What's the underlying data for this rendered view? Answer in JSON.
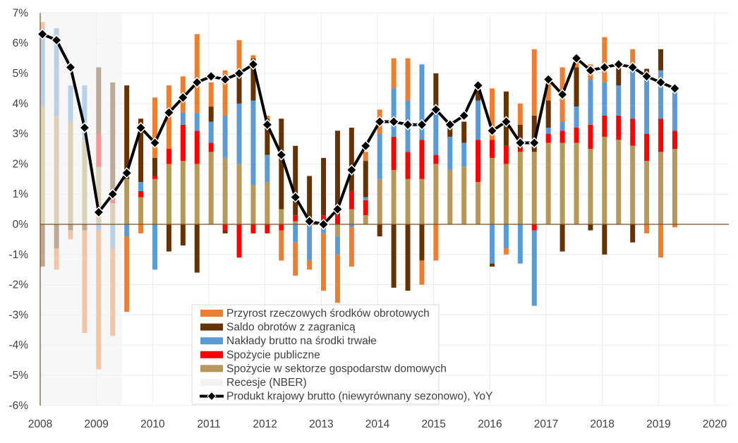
{
  "chart_data": {
    "type": "bar",
    "stacked": true,
    "title": "",
    "xlabel": "",
    "ylabel": "",
    "categories": [
      "2008Q1",
      "2008Q2",
      "2008Q3",
      "2008Q4",
      "2009Q1",
      "2009Q2",
      "2009Q3",
      "2009Q4",
      "2010Q1",
      "2010Q2",
      "2010Q3",
      "2010Q4",
      "2011Q1",
      "2011Q2",
      "2011Q3",
      "2011Q4",
      "2012Q1",
      "2012Q2",
      "2012Q3",
      "2012Q4",
      "2013Q1",
      "2013Q2",
      "2013Q3",
      "2013Q4",
      "2014Q1",
      "2014Q2",
      "2014Q3",
      "2014Q4",
      "2015Q1",
      "2015Q2",
      "2015Q3",
      "2015Q4",
      "2016Q1",
      "2016Q2",
      "2016Q3",
      "2016Q4",
      "2017Q1",
      "2017Q2",
      "2017Q3",
      "2017Q4",
      "2018Q1",
      "2018Q2",
      "2018Q3",
      "2018Q4",
      "2019Q1",
      "2019Q2"
    ],
    "x_ticks": [
      "2008",
      "2009",
      "2010",
      "2011",
      "2012",
      "2013",
      "2014",
      "2015",
      "2016",
      "2017",
      "2018",
      "2019",
      "2020"
    ],
    "y_ticks": [
      "-6%",
      "-5%",
      "-4%",
      "-3%",
      "-2%",
      "-1%",
      "0%",
      "1%",
      "2%",
      "3%",
      "4%",
      "5%",
      "6%",
      "7%"
    ],
    "xlim": [
      2008,
      2020
    ],
    "ylim": [
      -6,
      7
    ],
    "grid": true,
    "legend_position": "bottom-center",
    "series": [
      {
        "name": "Spożycie w sektorze gospodarstw domowych",
        "color": "#B5985A",
        "values": [
          3.9,
          3.6,
          3.4,
          2.8,
          1.9,
          0.7,
          1.5,
          0.9,
          1.5,
          2.0,
          2.1,
          2.0,
          2.4,
          2.2,
          2.0,
          1.3,
          1.4,
          0.5,
          0.1,
          0.1,
          0,
          -0.4,
          0.5,
          0.3,
          1.5,
          1.8,
          1.5,
          1.5,
          2.0,
          1.8,
          1.9,
          1.4,
          2.2,
          2.0,
          2.4,
          2.4,
          2.7,
          2.7,
          2.7,
          2.5,
          2.9,
          2.8,
          2.6,
          2.1,
          2.4,
          2.5
        ]
      },
      {
        "name": "Spożycie publiczne",
        "color": "#FF0000",
        "values": [
          0,
          0,
          0,
          0,
          1.1,
          0.1,
          0,
          0.2,
          0.1,
          0.5,
          1.2,
          1.1,
          0.3,
          -0.2,
          -1.1,
          -0.3,
          -0.3,
          -0.2,
          0.2,
          0,
          0.3,
          0.3,
          0.6,
          0.5,
          0,
          1.1,
          0.9,
          1.3,
          0.3,
          0,
          0,
          1.4,
          0.6,
          0.6,
          0.1,
          -0.2,
          0.3,
          0.4,
          0.5,
          0.8,
          0.7,
          0.8,
          0.9,
          0.9,
          1.1,
          0.6
        ]
      },
      {
        "name": "Nakłady brutto na środki trwałe",
        "color": "#5B9BD5",
        "values": [
          2.6,
          2.9,
          1.2,
          1.8,
          -0.2,
          -0.8,
          -0.4,
          0.3,
          -1.5,
          0,
          0.4,
          0.6,
          0.7,
          1.4,
          2.0,
          2.8,
          0.9,
          0,
          -0.6,
          -1.2,
          -0.3,
          -0.6,
          -0.1,
          0.1,
          1.5,
          1.6,
          1.7,
          2.5,
          1.5,
          1.1,
          0.8,
          1.3,
          -1.3,
          -0.8,
          -1.3,
          -2.5,
          0.2,
          0.3,
          0.7,
          1.5,
          1.1,
          1.0,
          1.8,
          1.8,
          1.6,
          1.3
        ]
      },
      {
        "name": "Saldo obrotów z zagranicą",
        "color": "#663300",
        "values": [
          -1.4,
          -0.8,
          -0.2,
          -0.2,
          2.2,
          3.9,
          3.1,
          2.1,
          0.6,
          -0.9,
          -0.7,
          -1.6,
          0.5,
          -0.1,
          1.0,
          1.4,
          1.2,
          3.0,
          2.3,
          1.5,
          1.9,
          2.8,
          2.1,
          1.2,
          -0.4,
          -2.1,
          -2.2,
          -1.2,
          1.2,
          0.3,
          0.7,
          0.4,
          -0.1,
          1.8,
          0.8,
          1.2,
          0.9,
          -0.9,
          1.3,
          -0.2,
          -1.0,
          0.8,
          -0.6,
          0.35,
          0.7,
          0
        ]
      },
      {
        "name": "Przyrost rzeczowych środków obrotowych",
        "color": "#ED7D31",
        "values": [
          0.2,
          -0.7,
          -0.3,
          -3.4,
          -4.6,
          -2.9,
          -2.5,
          -0.3,
          2.0,
          2.1,
          1.2,
          2.6,
          0.8,
          1.5,
          1.1,
          0.1,
          0.1,
          -1.0,
          -1.1,
          -0.3,
          -1.9,
          -1.6,
          -1.3,
          0.3,
          0.8,
          1.0,
          1.4,
          -0.8,
          -1.2,
          0,
          0,
          0,
          1.7,
          -0.2,
          0.7,
          2.2,
          0.6,
          1.8,
          0.2,
          0.5,
          1.5,
          0,
          0.5,
          -0.3,
          -1.1,
          -0.1
        ]
      }
    ],
    "line": {
      "name": "Produkt krajowy brutto (niewyrównany sezonowo), YoY",
      "color": "#000000",
      "values": [
        6.3,
        6.1,
        5.2,
        3.2,
        0.4,
        1.0,
        1.7,
        3.2,
        2.7,
        3.7,
        4.2,
        4.7,
        4.9,
        4.8,
        5.0,
        5.3,
        3.3,
        2.3,
        0.9,
        0.1,
        0.0,
        0.5,
        1.8,
        2.6,
        3.4,
        3.4,
        3.3,
        3.3,
        3.8,
        3.3,
        3.6,
        4.6,
        3.1,
        3.4,
        2.7,
        2.7,
        4.8,
        4.3,
        5.5,
        5.1,
        5.2,
        5.3,
        5.2,
        4.9,
        4.7,
        4.5
      ]
    },
    "recession": {
      "name": "Recesje (NBER)",
      "color": "#F2F2F2",
      "start": "2008Q1",
      "end": "2009Q2"
    },
    "legend": [
      "Przyrost rzeczowych środków obrotowych",
      "Saldo obrotów z zagranicą",
      "Nakłady brutto na środki trwałe",
      "Spożycie publiczne",
      "Spożycie w sektorze gospodarstw domowych",
      "Recesje (NBER)",
      "Produkt krajowy brutto (niewyrównany sezonowo), YoY"
    ]
  }
}
